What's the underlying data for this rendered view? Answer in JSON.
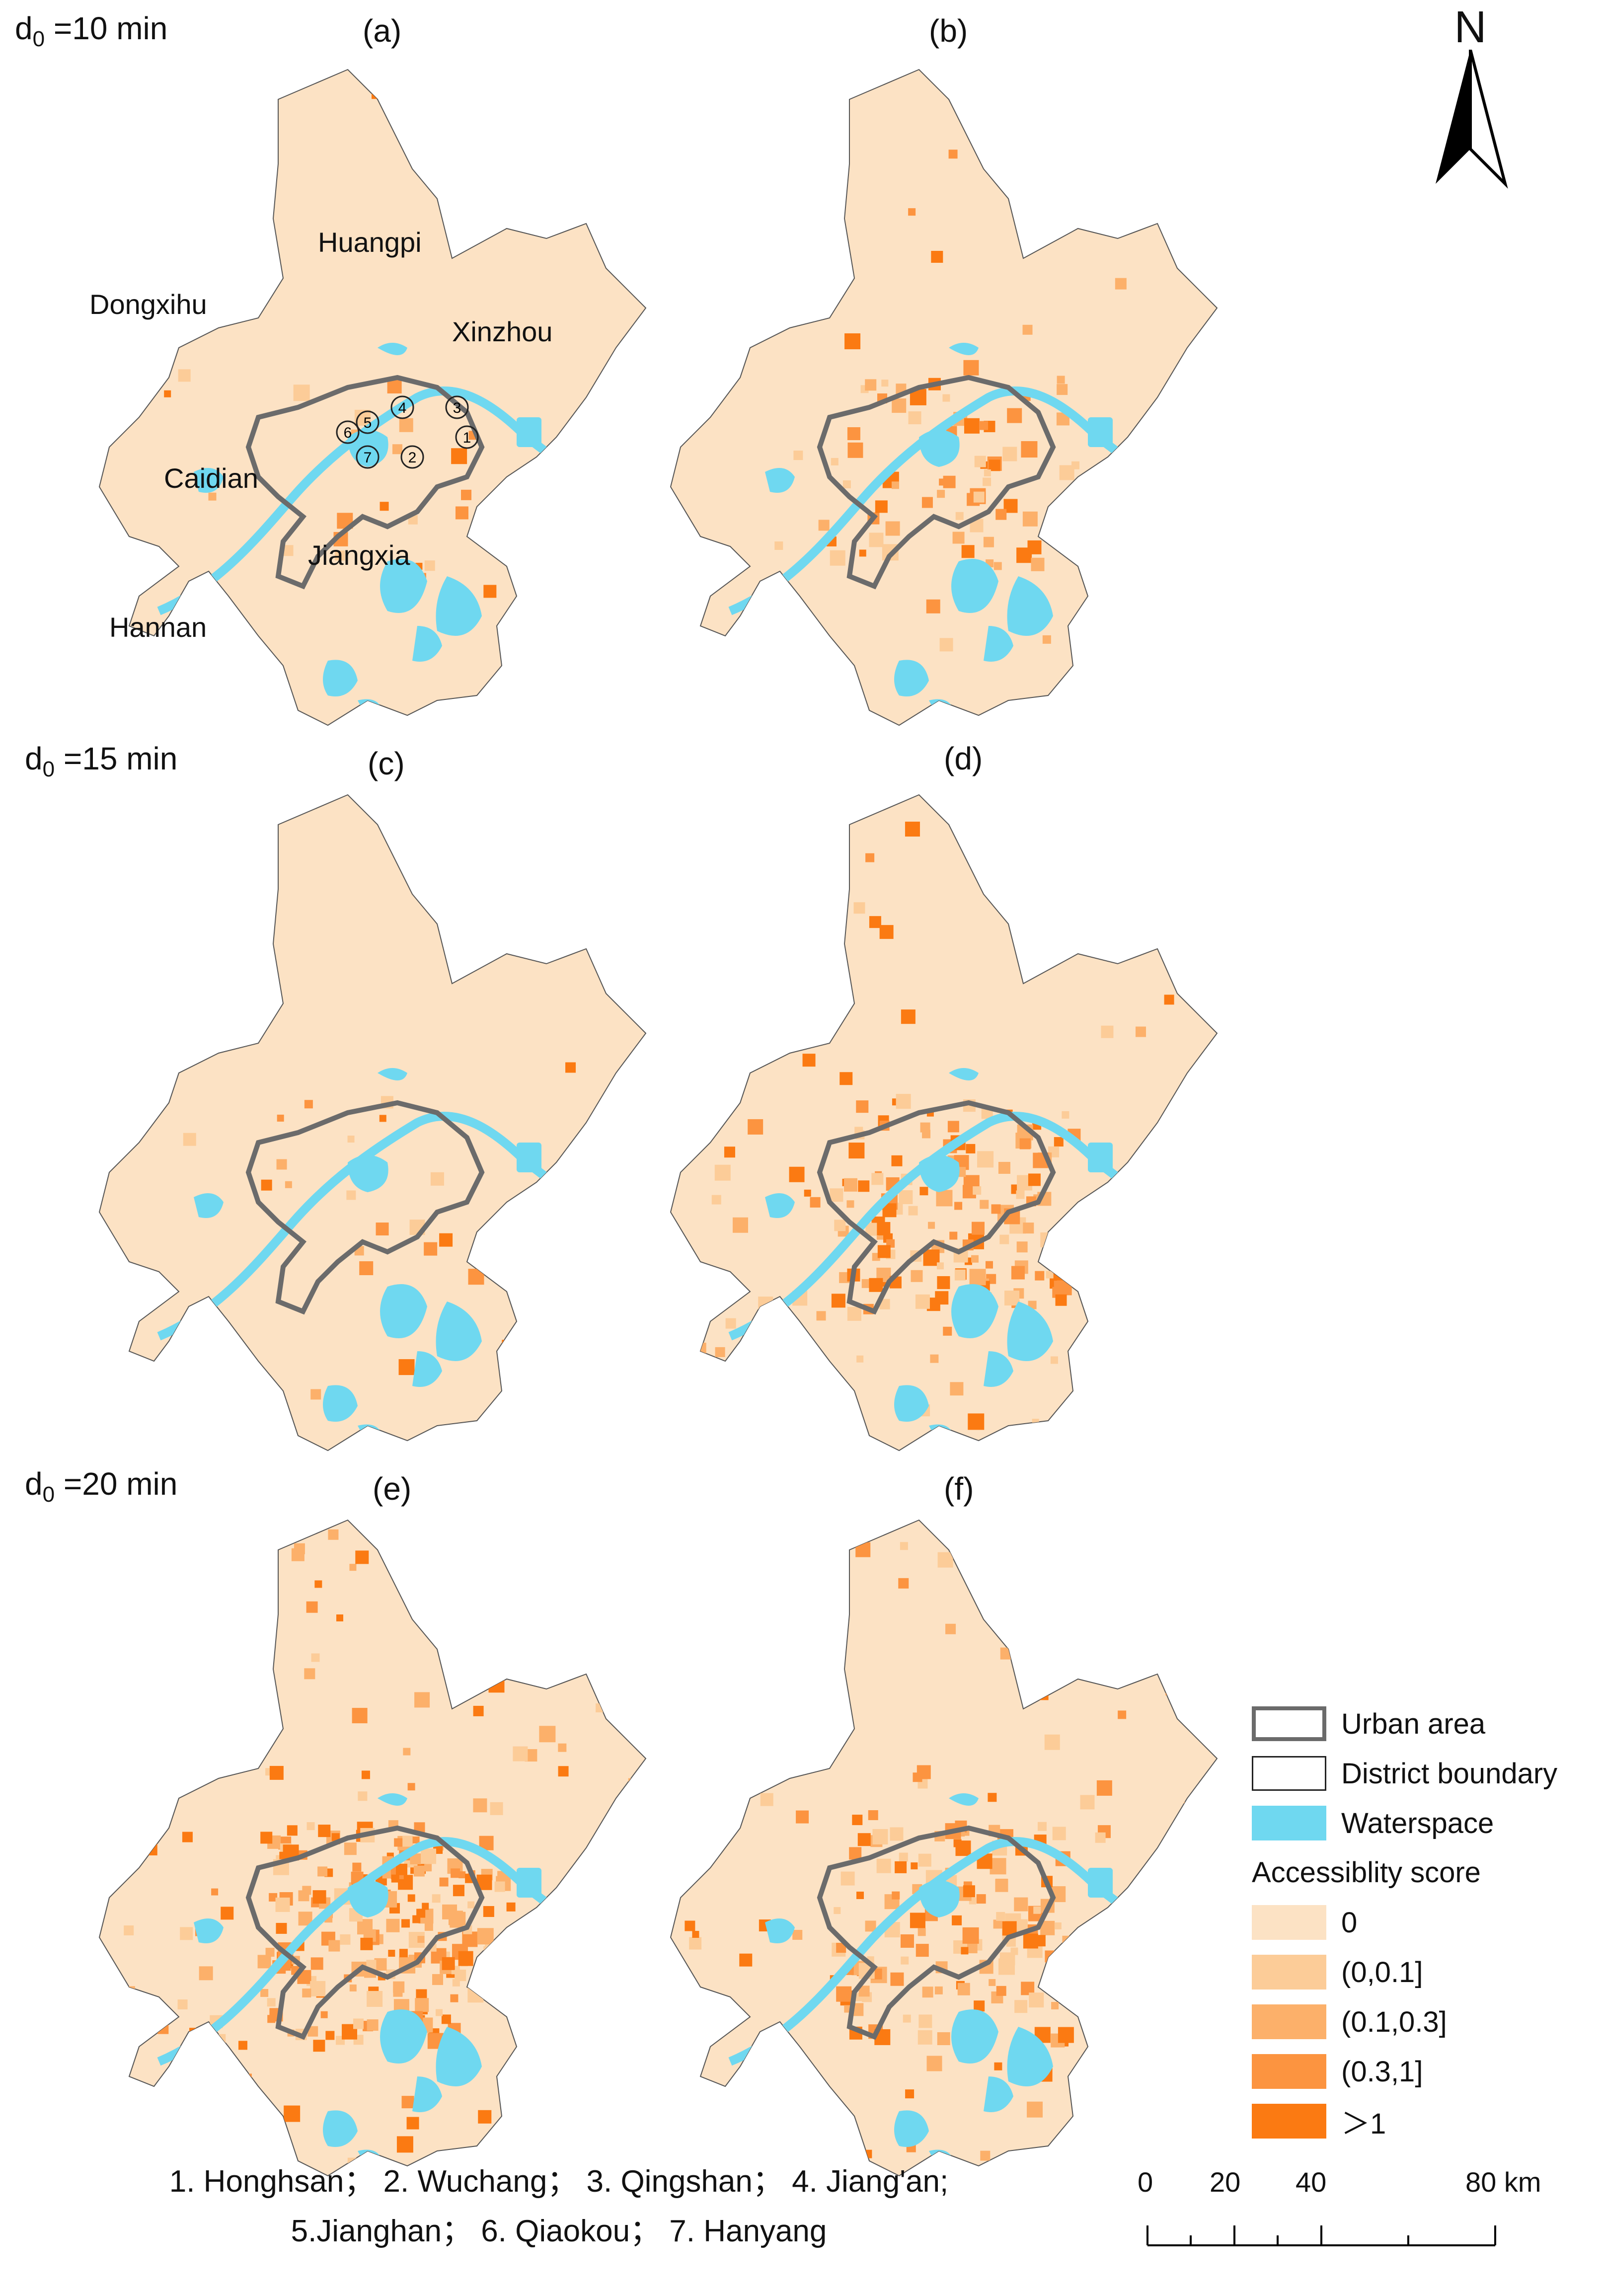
{
  "rows": [
    {
      "label_prefix": "d",
      "label_sub": "0",
      "label_suffix": " =10 min"
    },
    {
      "label_prefix": "d",
      "label_sub": "0",
      "label_suffix": " =15 min"
    },
    {
      "label_prefix": "d",
      "label_sub": "0",
      "label_suffix": " =20 min"
    }
  ],
  "panels": [
    "(a)",
    "(b)",
    "(c)",
    "(d)",
    "(e)",
    "(f)"
  ],
  "panel_levels": [
    "low",
    "mid",
    "low",
    "high",
    "max",
    "high"
  ],
  "north_label": "N",
  "districts": {
    "huangpi": "Huangpi",
    "dongxihu": "Dongxihu",
    "xinzhou": "Xinzhou",
    "caidian": "Caidian",
    "jiangxia": "Jiangxia",
    "hannan": "Hannan"
  },
  "urban_numbers": [
    "1",
    "2",
    "3",
    "4",
    "5",
    "6",
    "7"
  ],
  "legend": {
    "urban_area": "Urban area",
    "district_boundary": "District boundary",
    "waterspace": "Waterspace",
    "score_title": "Accessiblity score",
    "classes": [
      {
        "label": "0",
        "color": "#fce2c4"
      },
      {
        "label": "(0,0.1]",
        "color": "#fccc98"
      },
      {
        "label": "(0.1,0.3]",
        "color": "#fcb06a"
      },
      {
        "label": "(0.3,1]",
        "color": "#fc9440"
      },
      {
        "label": "＞1",
        "color": "#fb7a12"
      }
    ]
  },
  "caption": {
    "line1": "1. Honghsan； 2. Wuchang； 3. Qingshan； 4. Jiang'an;",
    "line2": "5.Jianghan； 6. Qiaokou； 7. Hanyang"
  },
  "scale": {
    "ticks": [
      "0",
      "20",
      "40",
      "80 km"
    ]
  },
  "colors": {
    "land": "#fce2c4",
    "water": "#6fd8f0",
    "urban_boundary": "#6b6b6b",
    "district_boundary": "#222222"
  }
}
